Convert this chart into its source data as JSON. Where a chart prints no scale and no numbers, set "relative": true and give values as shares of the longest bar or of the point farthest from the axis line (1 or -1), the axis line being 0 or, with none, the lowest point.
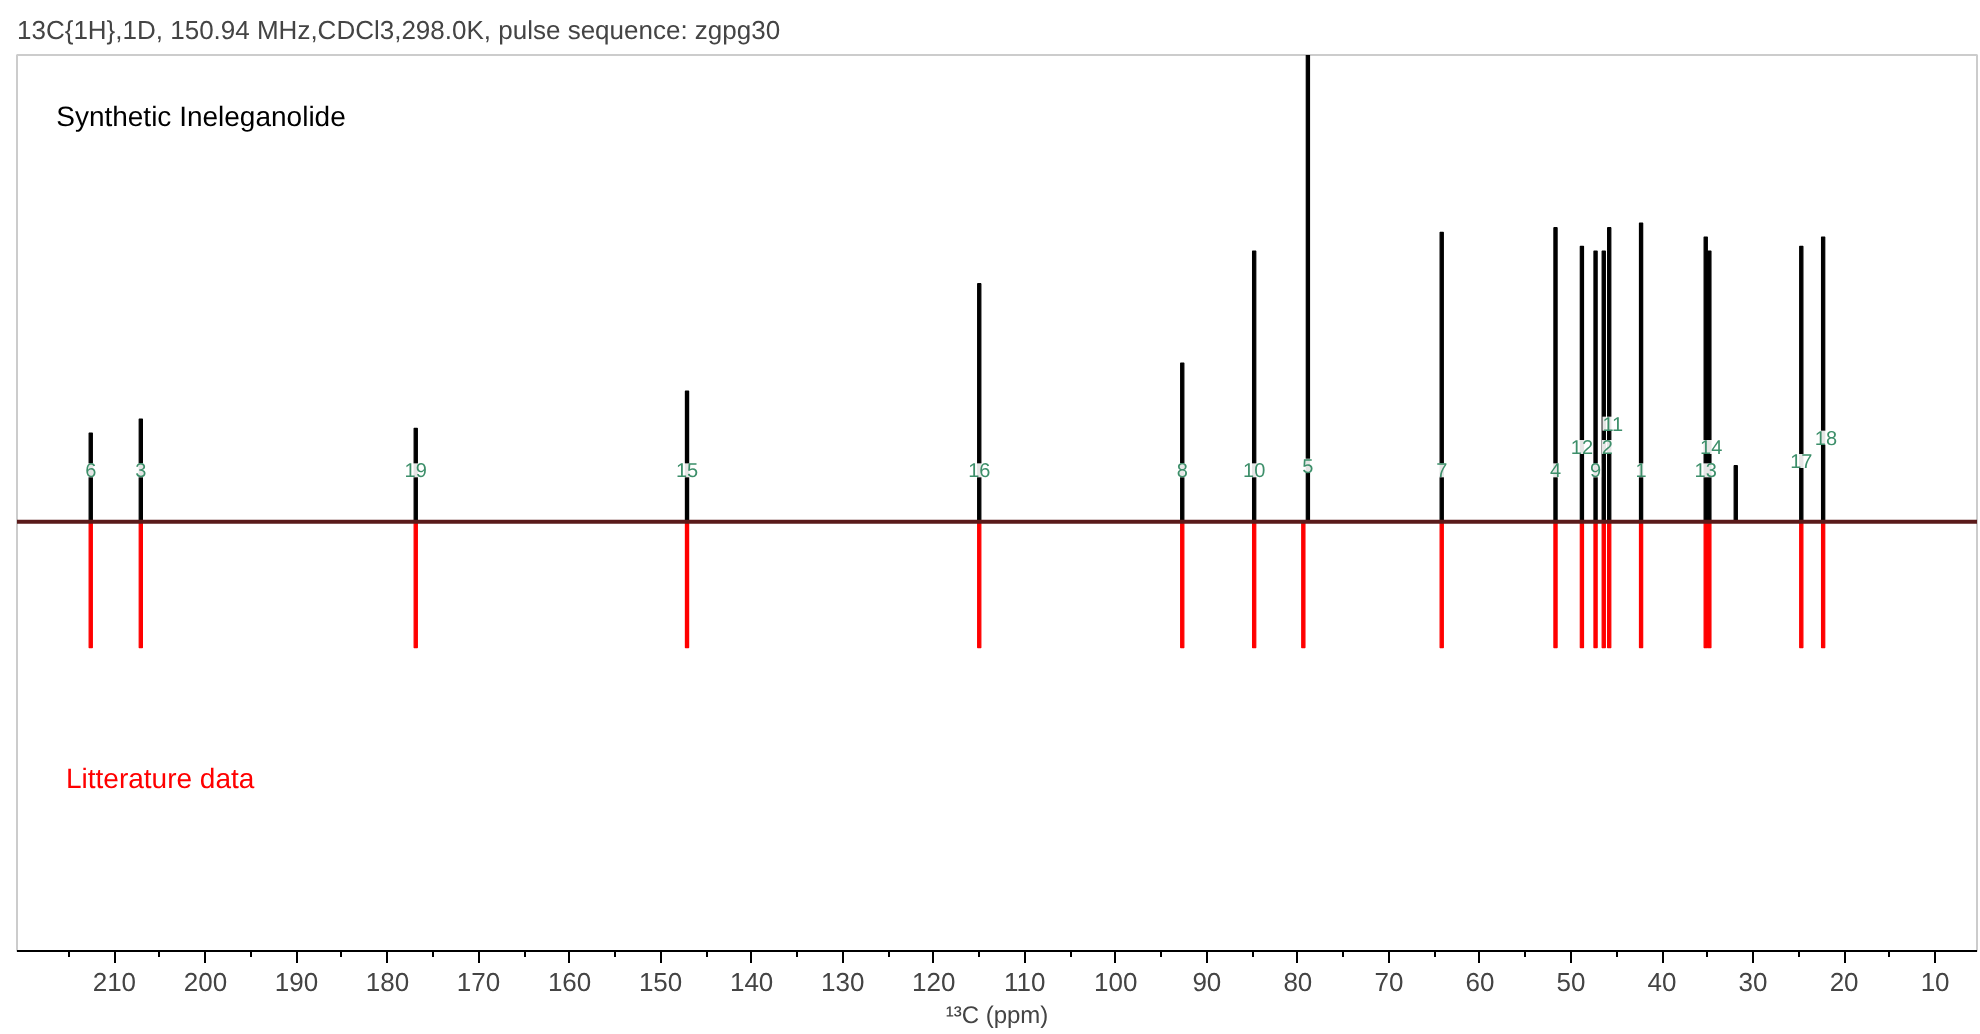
{
  "chart_data": {
    "type": "bar",
    "title": "13C{1H},1D, 150.94 MHz,CDCl3,298.0K, pulse sequence: zgpg30",
    "xlabel": "¹³C (ppm)",
    "relative": true,
    "xlim": [
      220.7,
      5.4
    ],
    "xticks": [
      210,
      200,
      190,
      180,
      170,
      160,
      150,
      140,
      130,
      120,
      110,
      100,
      90,
      80,
      70,
      60,
      50,
      40,
      30,
      20,
      10
    ],
    "grid": false,
    "series": [
      {
        "name": "Synthetic Ineleganolide",
        "color": "#000000",
        "x": [
          212.6,
          207.1,
          176.9,
          147.1,
          115.0,
          92.7,
          84.8,
          78.9,
          64.2,
          51.7,
          48.8,
          47.3,
          46.4,
          45.8,
          42.3,
          35.2,
          34.8,
          31.9,
          24.7,
          22.3
        ],
        "values": [
          0.19,
          0.22,
          0.2,
          0.28,
          0.51,
          0.34,
          0.58,
          1,
          0.62,
          0.63,
          0.59,
          0.58,
          0.58,
          0.63,
          0.64,
          0.61,
          0.58,
          0.12,
          0.59,
          0.61
        ]
      },
      {
        "name": "Litterature data",
        "color": "#ff0000",
        "x": [
          212.6,
          207.1,
          176.9,
          147.1,
          115.0,
          92.7,
          84.8,
          79.4,
          64.2,
          51.7,
          48.8,
          47.3,
          46.4,
          45.8,
          42.3,
          35.2,
          34.8,
          24.7,
          22.3
        ],
        "values": [
          -0.27,
          -0.27,
          -0.27,
          -0.27,
          -0.27,
          -0.27,
          -0.27,
          -0.27,
          -0.27,
          -0.27,
          -0.27,
          -0.27,
          -0.27,
          -0.27,
          -0.27,
          -0.27,
          -0.27,
          -0.27,
          -0.27
        ]
      }
    ],
    "annotations": [
      {
        "text": "6",
        "x": 212.6,
        "y": 0.11
      },
      {
        "text": "3",
        "x": 207.1,
        "y": 0.11
      },
      {
        "text": "19",
        "x": 176.9,
        "y": 0.11
      },
      {
        "text": "15",
        "x": 147.1,
        "y": 0.11
      },
      {
        "text": "16",
        "x": 115.0,
        "y": 0.11
      },
      {
        "text": "8",
        "x": 92.7,
        "y": 0.11
      },
      {
        "text": "10",
        "x": 84.8,
        "y": 0.11
      },
      {
        "text": "5",
        "x": 78.9,
        "y": 0.12
      },
      {
        "text": "7",
        "x": 64.2,
        "y": 0.11
      },
      {
        "text": "4",
        "x": 51.7,
        "y": 0.11
      },
      {
        "text": "12",
        "x": 48.8,
        "y": 0.16
      },
      {
        "text": "9",
        "x": 47.3,
        "y": 0.11
      },
      {
        "text": "2",
        "x": 46.0,
        "y": 0.16
      },
      {
        "text": "11",
        "x": 45.4,
        "y": 0.21
      },
      {
        "text": "1",
        "x": 42.3,
        "y": 0.11
      },
      {
        "text": "13",
        "x": 35.2,
        "y": 0.11
      },
      {
        "text": "14",
        "x": 34.6,
        "y": 0.16
      },
      {
        "text": "17",
        "x": 24.7,
        "y": 0.13
      },
      {
        "text": "18",
        "x": 22.0,
        "y": 0.18
      }
    ]
  }
}
